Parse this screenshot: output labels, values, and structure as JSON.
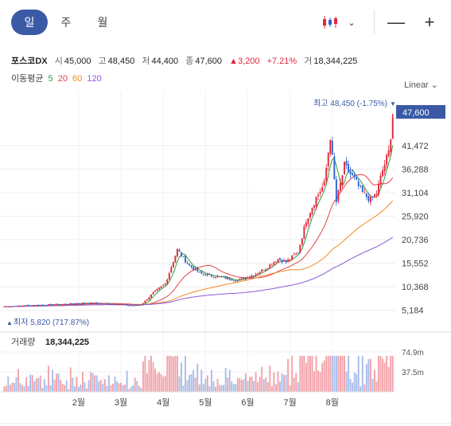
{
  "tabs": [
    {
      "label": "일"
    },
    {
      "label": "주"
    },
    {
      "label": "월"
    }
  ],
  "toolbar": {
    "dropdown_glyph": "⌄",
    "minus_glyph": "—",
    "plus_glyph": "+"
  },
  "quote": {
    "name": "포스코DX",
    "open_label": "시",
    "open": "45,000",
    "high_label": "고",
    "high": "48,450",
    "low_label": "저",
    "low": "44,400",
    "close_label": "종",
    "close": "47,600",
    "change_arrow": "▲",
    "change": "3,200",
    "change_pct": "+7.21%",
    "volume_label": "거",
    "volume": "18,344,225"
  },
  "moving_average": {
    "label": "이동평균",
    "periods": [
      {
        "label": "5",
        "color": "#2e9d3a"
      },
      {
        "label": "20",
        "color": "#e4424b"
      },
      {
        "label": "60",
        "color": "#f08a24"
      },
      {
        "label": "120",
        "color": "#8e58d8"
      }
    ]
  },
  "scale_mode": "Linear ⌄",
  "colors": {
    "up": "#e2263c",
    "down": "#2f62d1",
    "accent": "#3a5aa6",
    "vol_up": "#f2a3aa",
    "vol_down": "#a8bde9"
  },
  "chart_data": {
    "type": "candlestick",
    "y_ticks": [
      "5,184",
      "10,368",
      "15,552",
      "20,736",
      "25,920",
      "31,104",
      "36,288",
      "41,472"
    ],
    "ylim": [
      2500,
      49500
    ],
    "current_price_label": "47,600",
    "max_annotation": "최고 48,450 (-1.75%)",
    "min_annotation": "최저 5,820 (717.87%)",
    "volume_title": "거래량",
    "volume_value": "18,344,225",
    "volume_ticks": [
      "74.9m",
      "37.5m"
    ],
    "volume_max": 90,
    "x_ticks": [
      "2월",
      "3월",
      "4월",
      "5월",
      "6월",
      "7월",
      "8월"
    ],
    "anchors": [
      [
        0,
        6000
      ],
      [
        16,
        6300
      ],
      [
        30,
        6500
      ],
      [
        40,
        6800
      ],
      [
        54,
        6600
      ],
      [
        63,
        6200
      ],
      [
        68,
        6400
      ],
      [
        74,
        9000
      ],
      [
        80,
        11000
      ],
      [
        86,
        18500
      ],
      [
        92,
        15000
      ],
      [
        98,
        13200
      ],
      [
        106,
        12600
      ],
      [
        116,
        11800
      ],
      [
        124,
        13000
      ],
      [
        130,
        14500
      ],
      [
        136,
        16500
      ],
      [
        140,
        15800
      ],
      [
        146,
        18000
      ],
      [
        150,
        25000
      ],
      [
        155,
        30000
      ],
      [
        159,
        33000
      ],
      [
        162,
        43500
      ],
      [
        165,
        29000
      ],
      [
        169,
        37000
      ],
      [
        174,
        34000
      ],
      [
        178,
        31000
      ],
      [
        182,
        29500
      ],
      [
        185,
        31000
      ],
      [
        188,
        36000
      ],
      [
        191,
        40000
      ],
      [
        193,
        47600
      ]
    ],
    "bar_count": 194
  }
}
